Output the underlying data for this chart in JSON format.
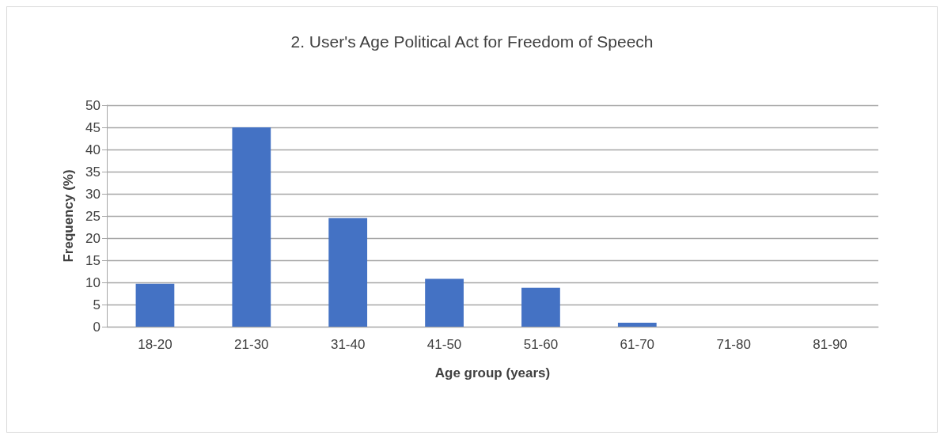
{
  "chart_data": {
    "type": "bar",
    "title": "2. User's Age Political Act for Freedom of Speech",
    "xlabel": "Age group (years)",
    "ylabel": "Frequency (%)",
    "categories": [
      "18-20",
      "21-30",
      "31-40",
      "41-50",
      "51-60",
      "61-70",
      "71-80",
      "81-90"
    ],
    "values": [
      9.7,
      45,
      24.5,
      10.8,
      8.8,
      0.9,
      0,
      0
    ],
    "color": "#4472c4",
    "ylim": [
      0,
      50
    ],
    "yticks": [
      0,
      5,
      10,
      15,
      20,
      25,
      30,
      35,
      40,
      45,
      50
    ],
    "grid": "y"
  }
}
